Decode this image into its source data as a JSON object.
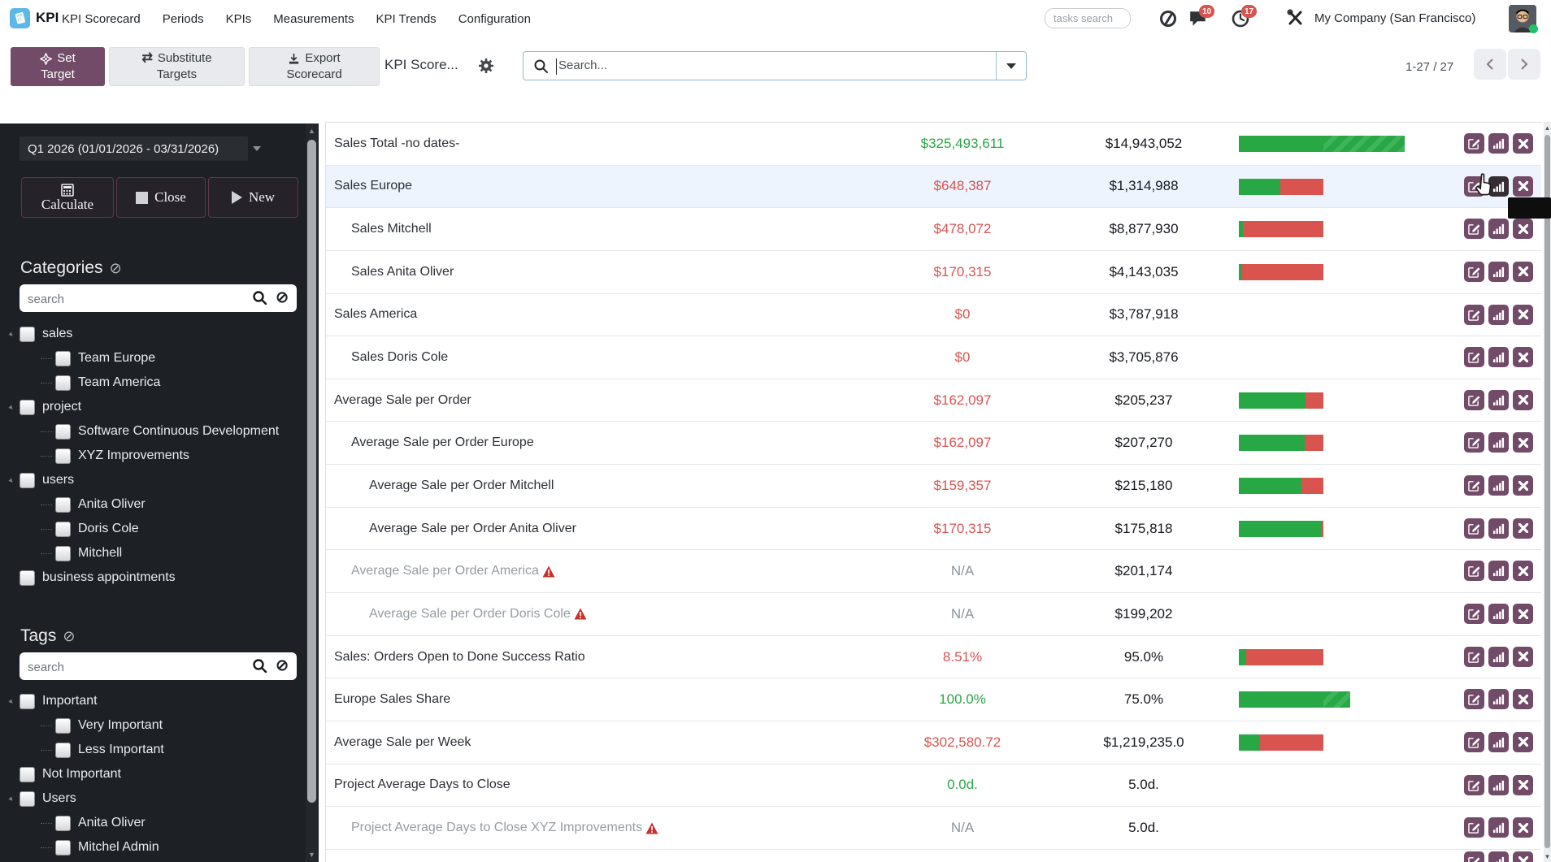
{
  "app": {
    "accent_color": "#714B67",
    "green_color": "#28a745",
    "red_color": "#d9534f"
  },
  "nav": {
    "brand": "KPI",
    "items": [
      "KPI Scorecard",
      "Periods",
      "KPIs",
      "Measurements",
      "KPI Trends",
      "Configuration"
    ],
    "tasks_search_placeholder": "tasks search",
    "messages_badge": "10",
    "activities_badge": "17",
    "company": "My Company (San Francisco)",
    "icons": {
      "presence": "status-circle-icon",
      "messages": "chat-bubble-icon",
      "activities": "clock-icon",
      "tools": "wrench-screwdriver-icon",
      "avatar": "user-avatar"
    }
  },
  "toolbar": {
    "set_target_line1": "Set",
    "set_target_line2": "Target",
    "substitute_line1": "Substitute",
    "substitute_line2": "Targets",
    "export_line1": "Export",
    "export_line2": "Scorecard",
    "breadcrumb": "KPI Score...",
    "search_placeholder": "Search...",
    "pager": "1-27 / 27",
    "icons": {
      "set_target": "crosshair-target",
      "substitute": "swap-arrows",
      "export": "download",
      "settings": "gear"
    }
  },
  "sidebar": {
    "period": "Q1 2026 (01/01/2026 - 03/31/2026)",
    "calculate_label": "Calculate",
    "close_label": "Close",
    "new_label": "New",
    "categories_title": "Categories",
    "tags_title": "Tags",
    "search_placeholder": "search",
    "categories": [
      {
        "label": "sales",
        "level": 0,
        "parent": true
      },
      {
        "label": "Team Europe",
        "level": 1
      },
      {
        "label": "Team America",
        "level": 1
      },
      {
        "label": "project",
        "level": 0,
        "parent": true
      },
      {
        "label": "Software Continuous Development",
        "level": 1
      },
      {
        "label": "XYZ Improvements",
        "level": 1
      },
      {
        "label": "users",
        "level": 0,
        "parent": true
      },
      {
        "label": "Anita Oliver",
        "level": 1
      },
      {
        "label": "Doris Cole",
        "level": 1
      },
      {
        "label": "Mitchell",
        "level": 1
      },
      {
        "label": "business appointments",
        "level": 0
      }
    ],
    "tags": [
      {
        "label": "Important",
        "level": 0,
        "parent": true
      },
      {
        "label": "Very Important",
        "level": 1
      },
      {
        "label": "Less Important",
        "level": 1
      },
      {
        "label": "Not Important",
        "level": 0
      },
      {
        "label": "Users",
        "level": 0,
        "parent": true
      },
      {
        "label": "Anita Oliver",
        "level": 1
      },
      {
        "label": "Mitchel Admin",
        "level": 1
      }
    ]
  },
  "table": {
    "rows": [
      {
        "name": "Sales Total -no dates-",
        "level": 0,
        "value": "$325,493,611",
        "vcls": "pos",
        "target": "$14,943,052",
        "bar": {
          "green": 100,
          "red": 0,
          "extra": 100
        }
      },
      {
        "name": "Sales Europe",
        "level": 0,
        "value": "$648,387",
        "vcls": "neg",
        "target": "$1,314,988",
        "bar": {
          "green": 49,
          "red": 51,
          "extra": 0
        },
        "hover": true,
        "hover_button": "chart"
      },
      {
        "name": "Sales Mitchell",
        "level": 1,
        "value": "$478,072",
        "vcls": "neg",
        "target": "$8,877,930",
        "bar": {
          "green": 5,
          "red": 95,
          "extra": 0
        }
      },
      {
        "name": "Sales Anita Oliver",
        "level": 1,
        "value": "$170,315",
        "vcls": "neg",
        "target": "$4,143,035",
        "bar": {
          "green": 4,
          "red": 96,
          "extra": 0
        }
      },
      {
        "name": "Sales America",
        "level": 0,
        "value": "$0",
        "vcls": "neg",
        "target": "$3,787,918",
        "bar": null
      },
      {
        "name": "Sales Doris Cole",
        "level": 1,
        "value": "$0",
        "vcls": "neg",
        "target": "$3,705,876",
        "bar": null
      },
      {
        "name": "Average Sale per Order",
        "level": 0,
        "value": "$162,097",
        "vcls": "neg",
        "target": "$205,237",
        "bar": {
          "green": 79,
          "red": 21,
          "extra": 0
        }
      },
      {
        "name": "Average Sale per Order Europe",
        "level": 1,
        "value": "$162,097",
        "vcls": "neg",
        "target": "$207,270",
        "bar": {
          "green": 78,
          "red": 22,
          "extra": 0
        }
      },
      {
        "name": "Average Sale per Order Mitchell",
        "level": 2,
        "value": "$159,357",
        "vcls": "neg",
        "target": "$215,180",
        "bar": {
          "green": 74,
          "red": 26,
          "extra": 0
        }
      },
      {
        "name": "Average Sale per Order Anita Oliver",
        "level": 2,
        "value": "$170,315",
        "vcls": "neg",
        "target": "$175,818",
        "bar": {
          "green": 97,
          "red": 3,
          "extra": 0
        }
      },
      {
        "name": "Average Sale per Order America",
        "level": 1,
        "value": "N/A",
        "vcls": "muted",
        "target": "$201,174",
        "bar": null,
        "warn": true,
        "muted": true
      },
      {
        "name": "Average Sale per Order Doris Cole",
        "level": 2,
        "value": "N/A",
        "vcls": "muted",
        "target": "$199,202",
        "bar": null,
        "warn": true,
        "muted": true
      },
      {
        "name": "Sales: Orders Open to Done Success Ratio",
        "level": 0,
        "value": "8.51%",
        "vcls": "neg",
        "target": "95.0%",
        "bar": {
          "green": 9,
          "red": 91,
          "extra": 0
        }
      },
      {
        "name": "Europe Sales Share",
        "level": 0,
        "value": "100.0%",
        "vcls": "pos",
        "target": "75.0%",
        "bar": {
          "green": 100,
          "red": 0,
          "extra": 33
        }
      },
      {
        "name": "Average Sale per Week",
        "level": 0,
        "value": "$302,580.72",
        "vcls": "neg",
        "target": "$1,219,235.0",
        "bar": {
          "green": 25,
          "red": 75,
          "extra": 0
        }
      },
      {
        "name": "Project Average Days to Close",
        "level": 0,
        "value": "0.0d.",
        "vcls": "pos",
        "target": "5.0d.",
        "bar": null
      },
      {
        "name": "Project Average Days to Close XYZ Improvements",
        "level": 1,
        "value": "N/A",
        "vcls": "muted",
        "target": "5.0d.",
        "bar": null,
        "warn": true,
        "muted": true
      }
    ],
    "clipped_row": true,
    "row_icons": {
      "edit": "pencil-square",
      "chart": "bar-chart",
      "delete": "x-cross",
      "warning": "red-warning-triangle"
    }
  }
}
